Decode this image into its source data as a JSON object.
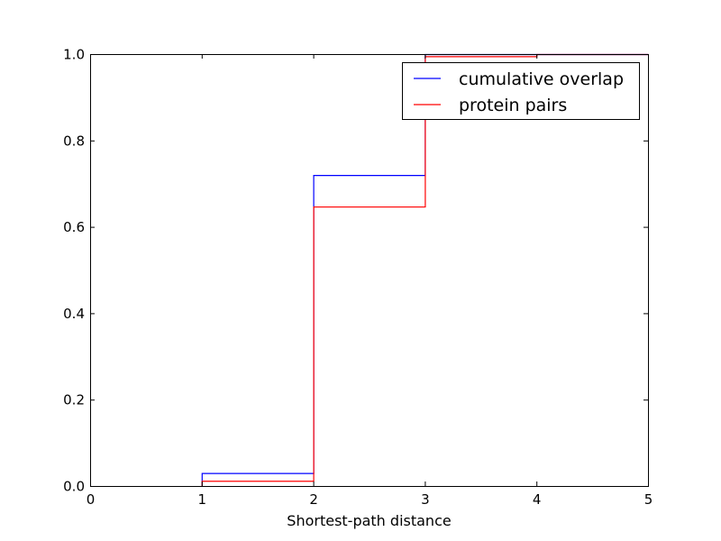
{
  "chart_data": {
    "type": "line",
    "drawstyle": "steps",
    "title": "",
    "xlabel": "Shortest-path distance",
    "ylabel": "",
    "xlim": [
      0,
      5
    ],
    "ylim": [
      0,
      1.0
    ],
    "x_ticks": [
      0,
      1,
      2,
      3,
      4,
      5
    ],
    "y_ticks": [
      0.0,
      0.2,
      0.4,
      0.6,
      0.8,
      1.0
    ],
    "x_tick_labels": [
      "0",
      "1",
      "2",
      "3",
      "4",
      "5"
    ],
    "y_tick_labels": [
      "0.0",
      "0.2",
      "0.4",
      "0.6",
      "0.8",
      "1.0"
    ],
    "grid": false,
    "legend_position": "top-right",
    "series": [
      {
        "name": "cumulative overlap",
        "color": "#0000ff",
        "x": [
          1,
          2,
          3,
          4,
          5
        ],
        "y": [
          0.03,
          0.72,
          1.0,
          1.0,
          1.0
        ]
      },
      {
        "name": "protein pairs",
        "color": "#ff0000",
        "x": [
          1,
          2,
          3,
          4,
          5
        ],
        "y": [
          0.012,
          0.647,
          0.995,
          1.0,
          1.0
        ]
      }
    ]
  }
}
